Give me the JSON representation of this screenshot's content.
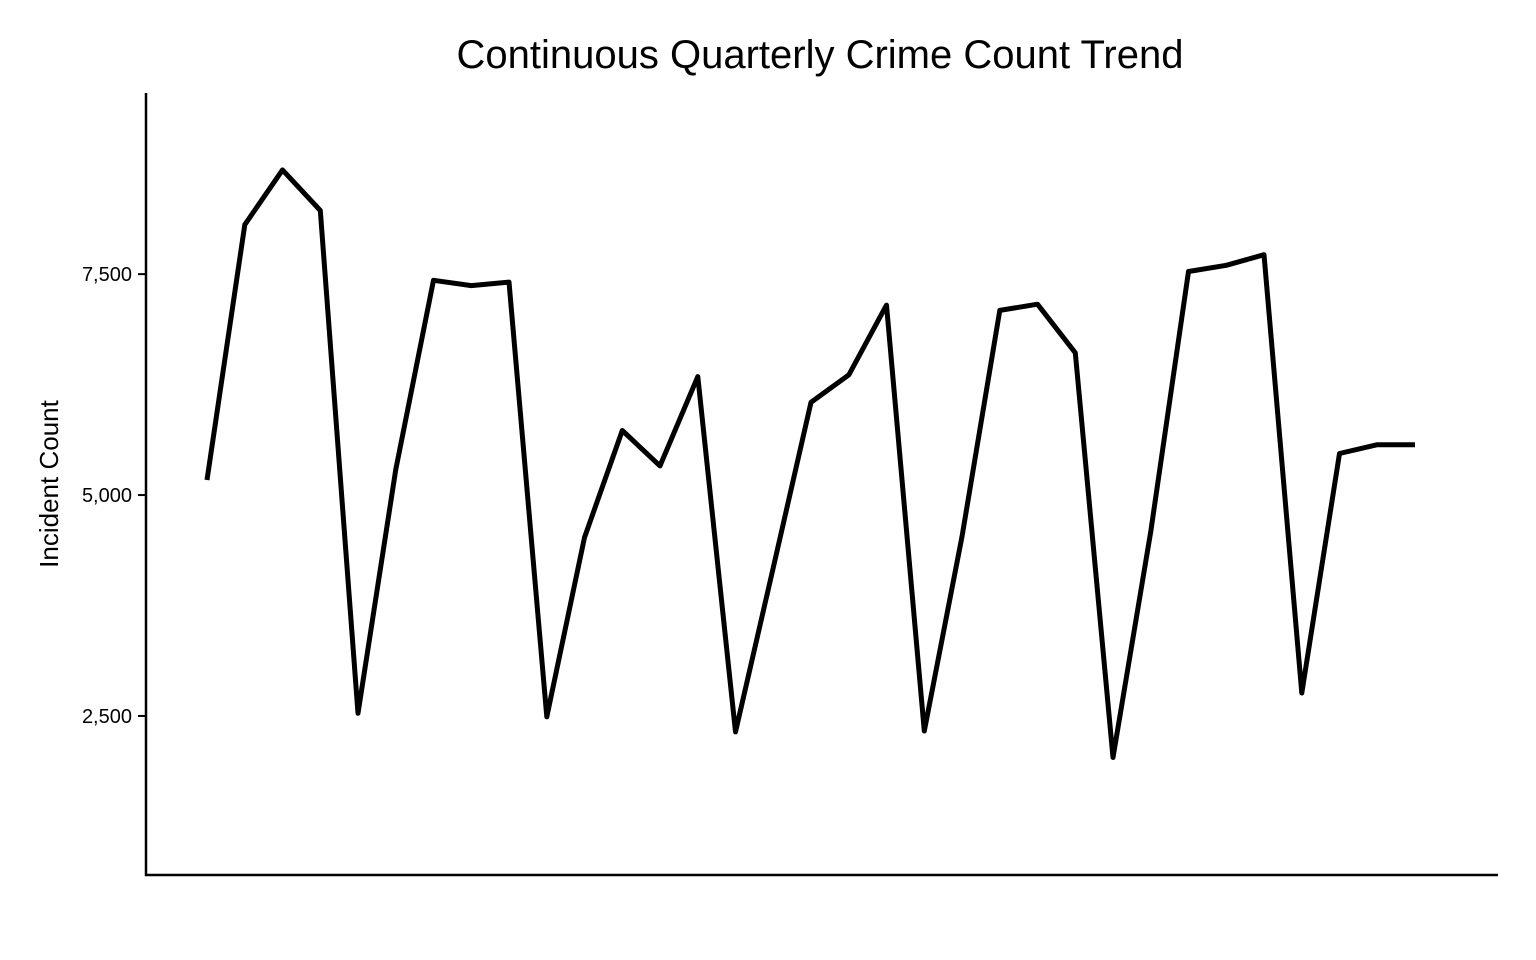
{
  "chart_data": {
    "type": "line",
    "title": "Continuous Quarterly Crime Count Trend",
    "xlabel": "",
    "ylabel": "Incident Count",
    "ylim": [
      700,
      9550
    ],
    "yticks": [
      {
        "value": 2500,
        "label": "2,500"
      },
      {
        "value": 5000,
        "label": "5,000"
      },
      {
        "value": 7500,
        "label": "7,500"
      }
    ],
    "x_tick_labels_shown": false,
    "grid": false,
    "legend": "none",
    "line_color": "#000000",
    "x": [
      1,
      2,
      3,
      4,
      5,
      6,
      7,
      8,
      9,
      10,
      11,
      12,
      13,
      14,
      15,
      16,
      17,
      18,
      19,
      20,
      21,
      22,
      23,
      24,
      25,
      26,
      27,
      28,
      29,
      30,
      31,
      32,
      33
    ],
    "series": [
      {
        "values": [
          5170,
          8060,
          8680,
          8220,
          2530,
          5290,
          7430,
          7370,
          7410,
          2490,
          4520,
          5730,
          5330,
          6340,
          2320,
          4180,
          6050,
          6360,
          7150,
          2330,
          4530,
          7090,
          7160,
          6610,
          2030,
          4590,
          7530,
          7600,
          7720,
          2760,
          5470,
          5570,
          5570
        ]
      }
    ]
  }
}
